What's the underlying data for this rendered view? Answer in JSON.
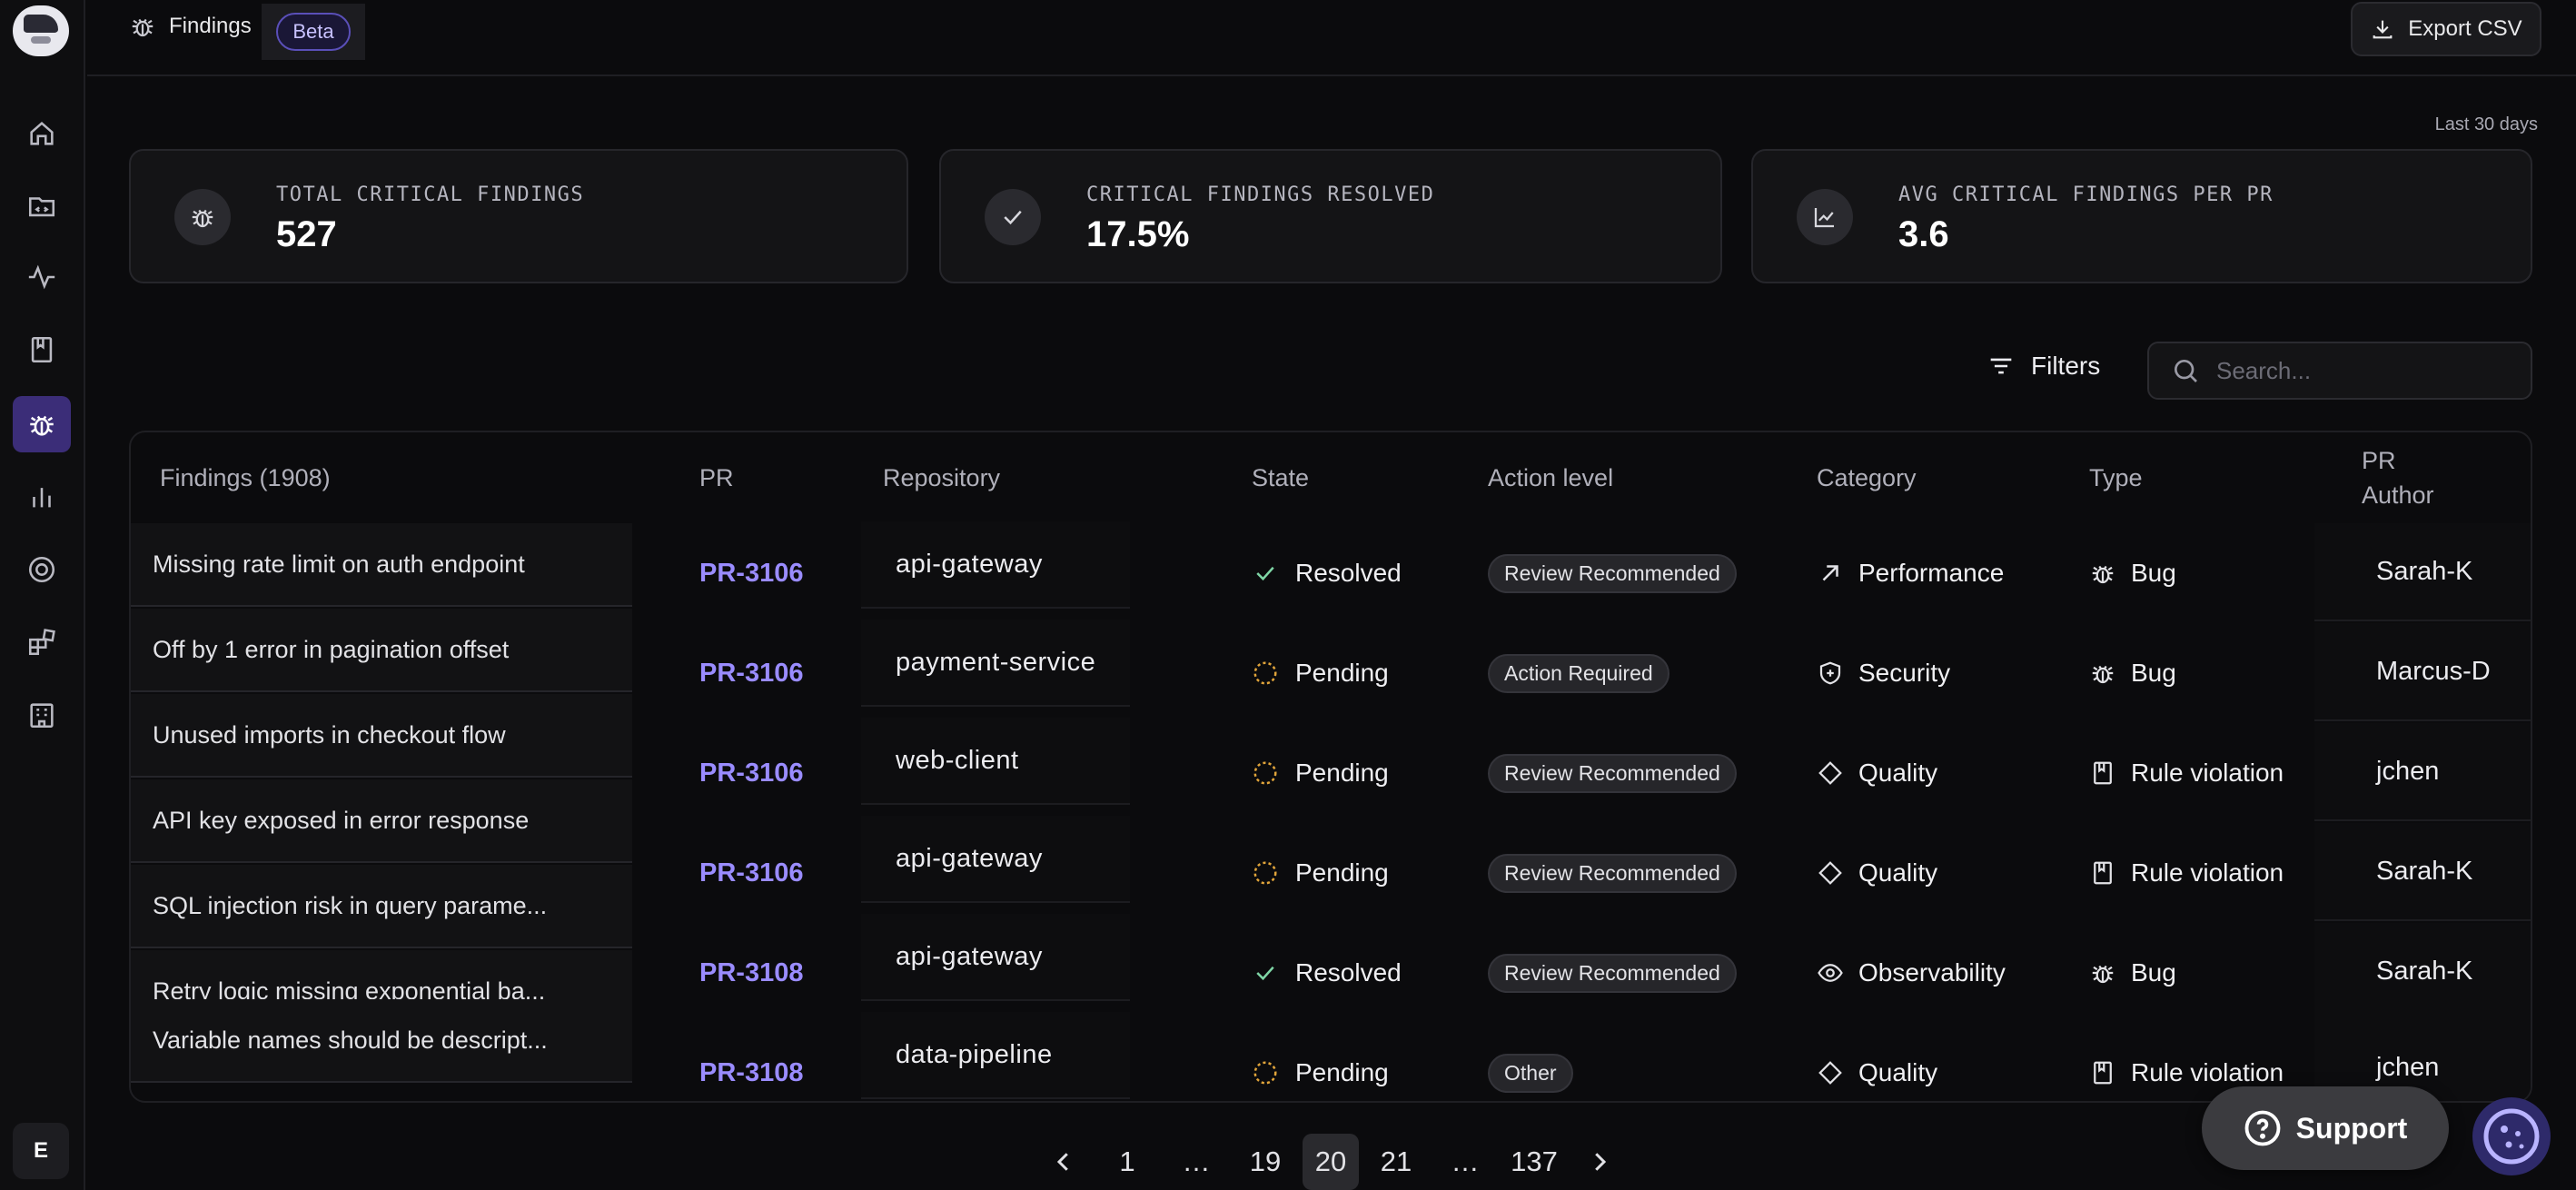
{
  "sidebar": {
    "nav": [
      "home-icon",
      "repository-icon",
      "activity-icon",
      "book-icon",
      "bug-icon",
      "bar-chart-icon",
      "target-icon",
      "integrations-icon",
      "building-icon"
    ],
    "active": "bug-icon",
    "avatar_initial": "E"
  },
  "header": {
    "breadcrumb": "Findings",
    "beta_label": "Beta",
    "export_label": "Export CSV"
  },
  "range_label": "Last 30 days",
  "stats": [
    {
      "label": "TOTAL CRITICAL FINDINGS",
      "value": "527",
      "icon": "bug-icon"
    },
    {
      "label": "CRITICAL FINDINGS RESOLVED",
      "value": "17.5%",
      "icon": "check-icon"
    },
    {
      "label": "AVG CRITICAL FINDINGS PER PR",
      "value": "3.6",
      "icon": "line-chart-icon"
    }
  ],
  "toolbar": {
    "filters_label": "Filters",
    "search_placeholder": "Search..."
  },
  "table": {
    "columns": {
      "findings": "Findings (1908)",
      "pr": "PR",
      "repository": "Repository",
      "state": "State",
      "action": "Action level",
      "category": "Category",
      "type": "Type",
      "author": "PR Author"
    },
    "rows": [
      {
        "title": "Missing rate limit on auth endpoint",
        "pr": "PR-3106",
        "repo": "api-gateway",
        "state": "Resolved",
        "action": "Review Recommended",
        "category": "Performance",
        "type": "Bug",
        "author": "Sarah-K"
      },
      {
        "title": "Off by 1 error in pagination offset",
        "pr": "PR-3106",
        "repo": "payment-service",
        "state": "Pending",
        "action": "Action Required",
        "category": "Security",
        "type": "Bug",
        "author": "Marcus-D"
      },
      {
        "title": "Unused imports in checkout flow",
        "pr": "PR-3106",
        "repo": "web-client",
        "state": "Pending",
        "action": "Review Recommended",
        "category": "Quality",
        "type": "Rule violation",
        "author": "jchen"
      },
      {
        "title": "API key exposed in error response",
        "pr": "PR-3106",
        "repo": "api-gateway",
        "state": "Pending",
        "action": "Review Recommended",
        "category": "Quality",
        "type": "Rule violation",
        "author": "Sarah-K"
      },
      {
        "title": "SQL injection risk in query parame...",
        "pr": "PR-3108",
        "repo": "api-gateway",
        "state": "Resolved",
        "action": "Review Recommended",
        "category": "Observability",
        "type": "Bug",
        "author": "Sarah-K"
      },
      {
        "title": "Retry logic missing exponential ba...",
        "pr": "PR-3108",
        "repo": "data-pipeline",
        "state": "Pending",
        "action": "Other",
        "category": "Quality",
        "type": "Rule violation",
        "author": "jchen"
      },
      {
        "title": "Variable names should be descript...",
        "pr": "",
        "repo": "",
        "state": "",
        "action": "",
        "category": "",
        "type": "",
        "author": ""
      }
    ]
  },
  "pagination": {
    "pages": [
      "1",
      "…",
      "19",
      "20",
      "21",
      "…",
      "137"
    ],
    "current": "20"
  },
  "support_label": "Support",
  "colors": {
    "accent": "#9a8cff",
    "active_nav": "#3b2d78",
    "resolved": "#7fd6a6",
    "pending": "#e0a43a"
  }
}
